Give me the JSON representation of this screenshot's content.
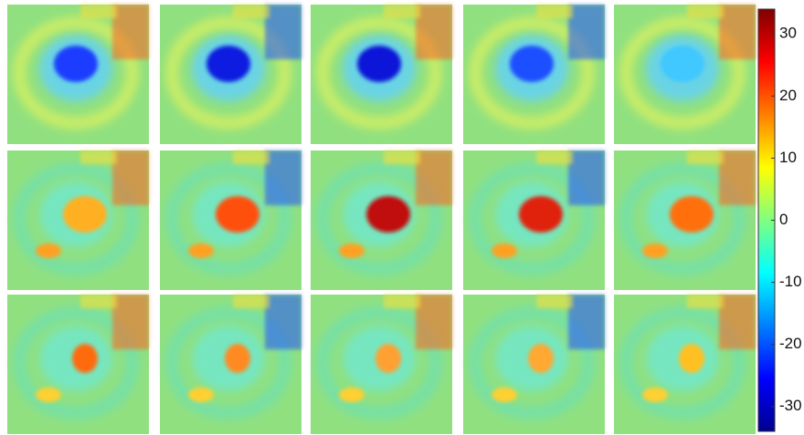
{
  "colorbar": {
    "lim": [
      -34,
      34
    ],
    "ticks": [
      30,
      20,
      10,
      0,
      -10,
      -20,
      -30
    ]
  }
}
